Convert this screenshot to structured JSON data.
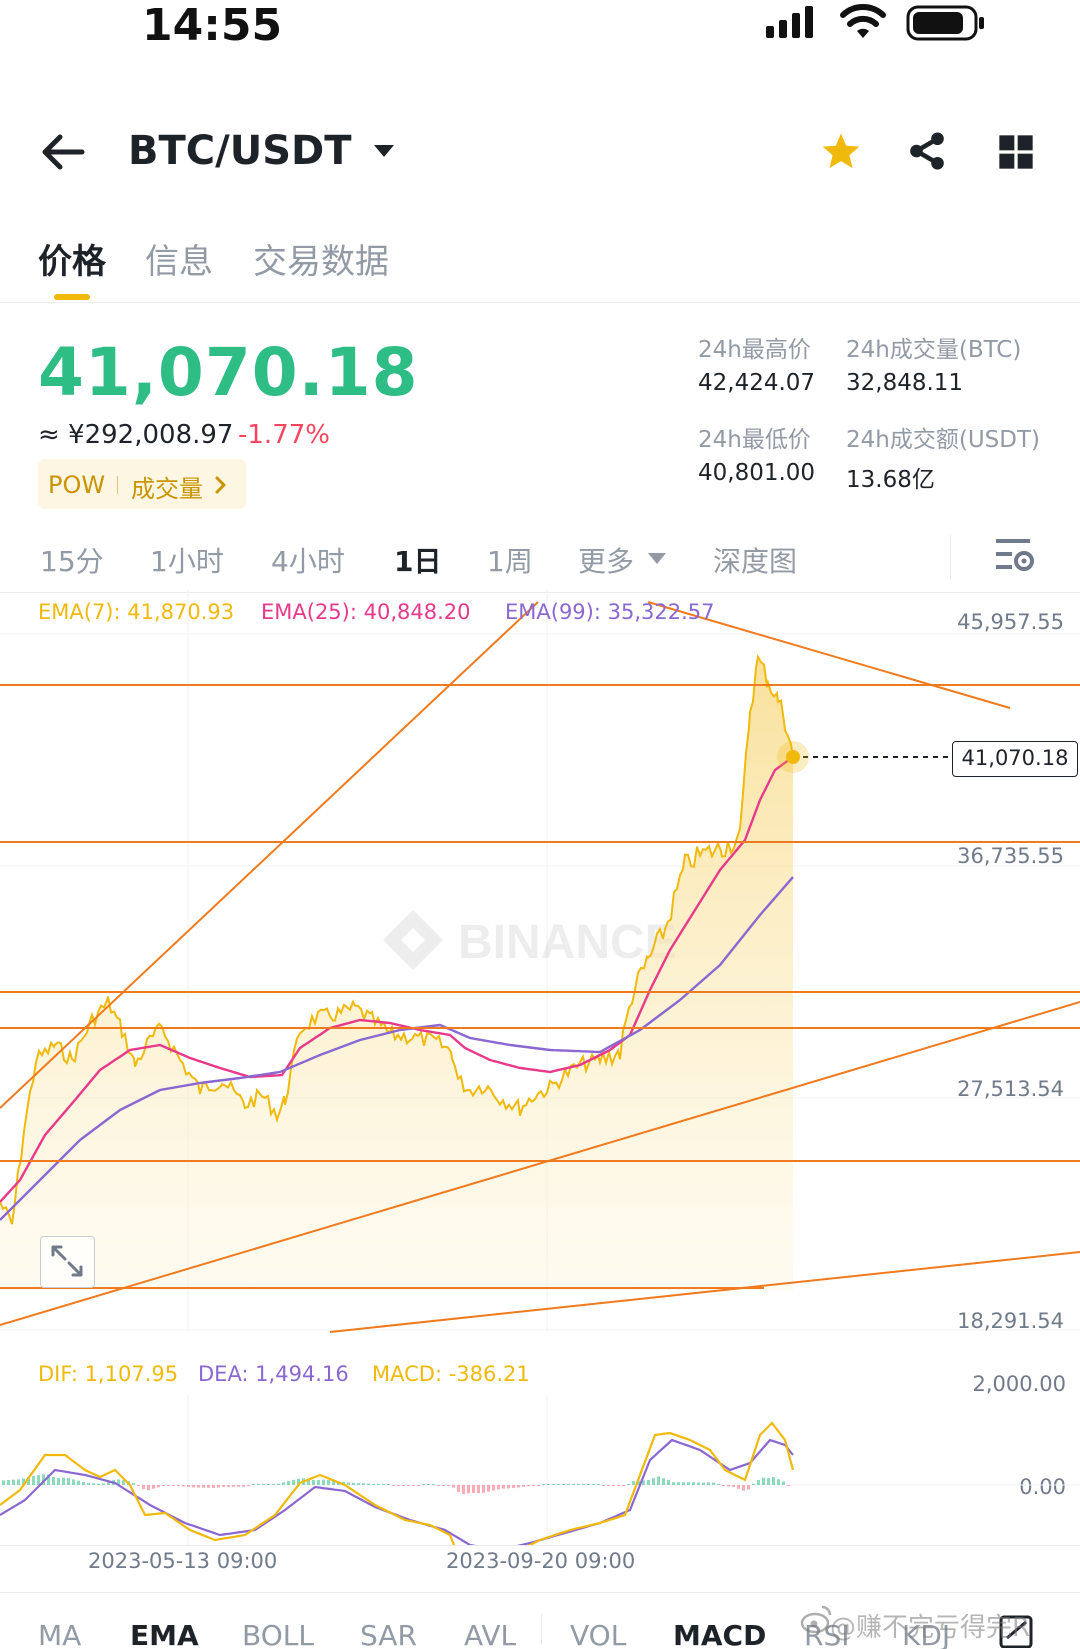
{
  "status_bar": {
    "time": "14:55"
  },
  "header": {
    "pair": "BTC/USDT"
  },
  "tabs": [
    {
      "label": "价格",
      "active": true
    },
    {
      "label": "信息",
      "active": false
    },
    {
      "label": "交易数据",
      "active": false
    }
  ],
  "price": {
    "last": "41,070.18",
    "cny": "≈ ¥292,008.97",
    "change": "-1.77%",
    "tag_pow": "POW",
    "tag_volume": "成交量"
  },
  "stats": {
    "high_label": "24h最高价",
    "high_value": "42,424.07",
    "vol_btc_label": "24h成交量(BTC)",
    "vol_btc_value": "32,848.11",
    "low_label": "24h最低价",
    "low_value": "40,801.00",
    "vol_usdt_label": "24h成交额(USDT)",
    "vol_usdt_value": "13.68亿"
  },
  "intervals": [
    {
      "label": "15分",
      "active": false
    },
    {
      "label": "1小时",
      "active": false
    },
    {
      "label": "4小时",
      "active": false
    },
    {
      "label": "1日",
      "active": true
    },
    {
      "label": "1周",
      "active": false
    },
    {
      "label": "更多",
      "active": false
    },
    {
      "label": "深度图",
      "active": false
    }
  ],
  "ema": {
    "ema7": "EMA(7): 41,870.93",
    "ema25": "EMA(25): 40,848.20",
    "ema99": "EMA(99): 35,322.57"
  },
  "price_axis": [
    "45,957.55",
    "36,735.55",
    "27,513.54",
    "18,291.54"
  ],
  "current_price_tag": "41,070.18",
  "chart_watermark": "BINANCE",
  "macd": {
    "dif": "DIF: 1,107.95",
    "dea": "DEA: 1,494.16",
    "macd": "MACD: -386.21",
    "axis": [
      "2,000.00",
      "0.00"
    ]
  },
  "dates": [
    "2023-05-13 09:00",
    "2023-09-20 09:00"
  ],
  "indicator_tabs": [
    {
      "label": "MA",
      "active": false
    },
    {
      "label": "EMA",
      "active": true
    },
    {
      "label": "BOLL",
      "active": false
    },
    {
      "label": "SAR",
      "active": false
    },
    {
      "label": "AVL",
      "active": false
    },
    {
      "label": "VOL",
      "active": false
    },
    {
      "label": "MACD",
      "active": true
    },
    {
      "label": "RSI",
      "active": false
    },
    {
      "label": "KDJ",
      "active": false
    }
  ],
  "overlay_watermark": "@赚不完亏得完R",
  "colors": {
    "up": "#2ebd85",
    "down": "#f6465d",
    "accent": "#f0b90b",
    "ema7": "#f0b90b",
    "ema25": "#e8398b",
    "ema99": "#8a67d1",
    "trendline": "#f07a1e"
  }
}
